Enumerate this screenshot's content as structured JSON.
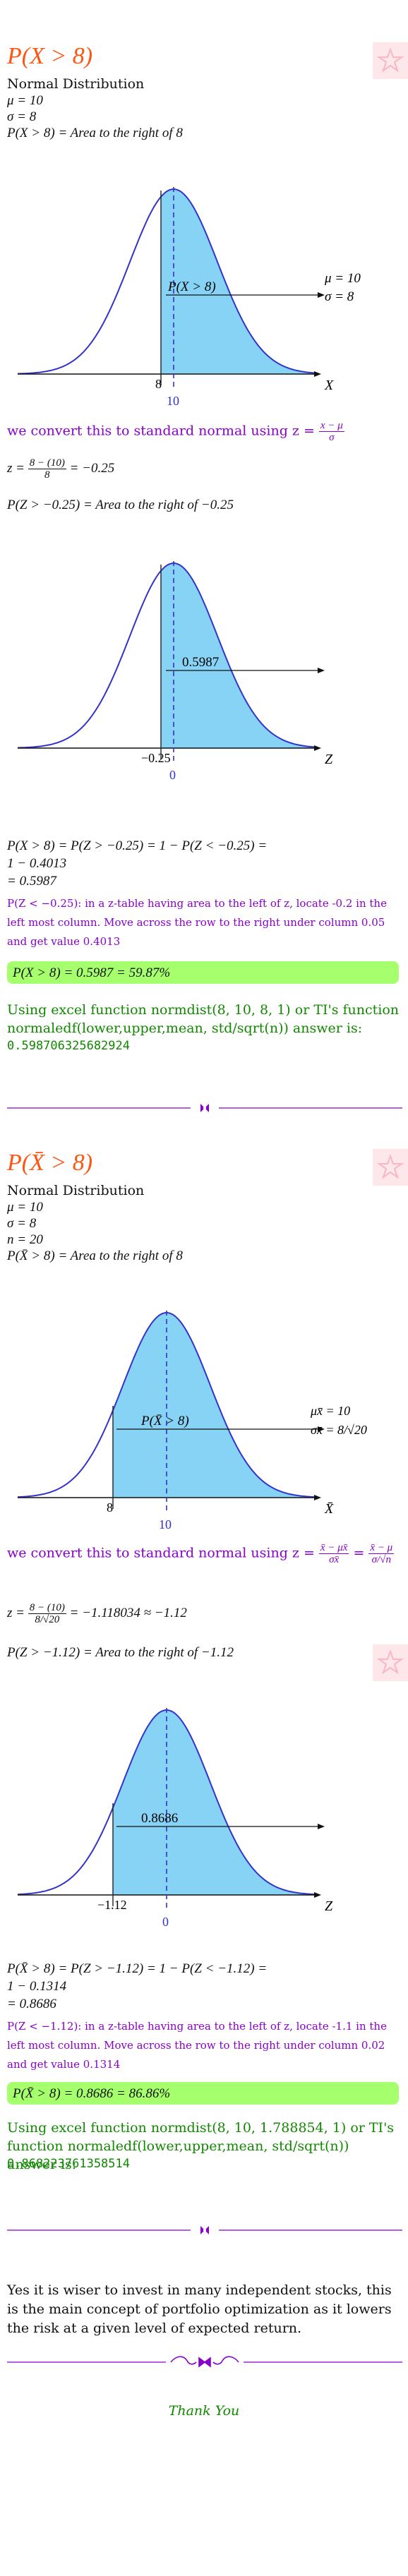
{
  "section1": {
    "heading": "P(X > 8)",
    "dist_name": "Normal Distribution",
    "mu_line": "μ = 10",
    "sigma_line": "σ = 8",
    "area_line": "P(X > 8) = Area to the right of 8",
    "graph1": {
      "shaded_label": "P(X > 8)",
      "legend_mu": "μ = 10",
      "legend_sigma": "σ = 8",
      "tick_x": "8",
      "tick_mean": "10",
      "axis_label": "X"
    },
    "convert_text": "we convert this to standard normal using z =",
    "convert_num": "x − μ",
    "convert_den": "σ",
    "z_calc_prefix": "z =",
    "z_calc_num": "8 − (10)",
    "z_calc_den": "8",
    "z_calc_result": "= −0.25",
    "z_area_line": "P(Z > −0.25) = Area to the right of −0.25",
    "graph2": {
      "shaded_label": "0.5987",
      "tick_x": "−0.25",
      "tick_mean": "0",
      "axis_label": "Z"
    },
    "calc_line1": "P(X > 8) = P(Z > −0.25) = 1 − P(Z < −0.25) =",
    "calc_line2": "1 − 0.4013",
    "calc_line3": "= 0.5987",
    "note": "P(Z < −0.25): in a z-table having area to the left of z, locate -0.2 in the left most column. Move across the row to the right under column 0.05 and get value 0.4013",
    "answer": "P(X > 8) = 0.5987 = 59.87%",
    "excel_text": "Using excel function normdist(8, 10, 8, 1) or TI's function normaledf(lower,upper,mean, std/sqrt(n)) answer is:",
    "excel_value": "0.598706325682924"
  },
  "section2": {
    "heading": "P(X̄ > 8)",
    "dist_name": "Normal Distribution",
    "mu_line": "μ = 10",
    "sigma_line": "σ = 8",
    "n_line": "n = 20",
    "area_line": "P(X̄ > 8) = Area to the right of 8",
    "graph1": {
      "shaded_label": "P(X̄ > 8)",
      "legend_mu": "μx̄ = 10",
      "legend_sigma": "σx̄ = 8/√20",
      "tick_x": "8",
      "tick_mean": "10",
      "axis_label": "X̄"
    },
    "convert_text": "we convert this to standard normal using z =",
    "convert_num": "x̄ − μx̄",
    "convert_den": "σx̄",
    "convert_eq": "=",
    "convert_num2": "x̄ − μ",
    "convert_den2": "σ/√n",
    "z_calc_prefix": "z =",
    "z_calc_num": "8 − (10)",
    "z_calc_den": "8/√20",
    "z_calc_result": "= −1.118034 ≈ −1.12",
    "z_area_line": "P(Z > −1.12) = Area to the right of −1.12",
    "graph2": {
      "shaded_label": "0.8686",
      "tick_x": "−1.12",
      "tick_mean": "0",
      "axis_label": "Z"
    },
    "calc_line1": "P(X̄ > 8) = P(Z > −1.12) = 1 − P(Z < −1.12) =",
    "calc_line2": "1 − 0.1314",
    "calc_line3": "= 0.8686",
    "note": "P(Z < −1.12): in a z-table having area to the left of z, locate -1.1 in the left most column. Move across the row to the right under column 0.02 and get value 0.1314",
    "answer": "P(X̄ > 8) = 0.8686 = 86.86%",
    "excel_text": "Using excel function normdist(8, 10, 1.788854, 1) or TI's function normaledf(lower,upper,mean, std/sqrt(n)) answer is:",
    "excel_value": "0.868223761358514"
  },
  "conclusion": "Yes it is wiser to invest in many independent stocks, this is the main concept of portfolio optimization as it lowers the risk at a given level of expected return.",
  "thanks": "Thank You",
  "colors": {
    "heading": "#ff5511",
    "purple": "#8800cc",
    "green": "#118800",
    "answer_bg": "#a6ff6c",
    "curve": "#3333cc",
    "fill": "#87d3f5"
  }
}
